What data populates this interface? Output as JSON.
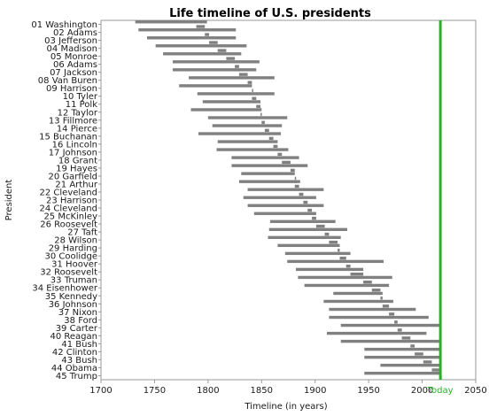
{
  "chart_data": {
    "type": "timeline-range",
    "title": "Life timeline of U.S. presidents",
    "xlabel": "Timeline (in years)",
    "ylabel": "President",
    "xlim": [
      1700,
      2050
    ],
    "xticks": [
      1700,
      1750,
      1800,
      1850,
      1900,
      1950,
      2000,
      2050
    ],
    "grid": false,
    "bar_color": "#808080",
    "reference_line": {
      "value": 2017,
      "label": "Today",
      "color": "#2ab02a"
    },
    "presidents": [
      {
        "name": "01 Washington",
        "born": 1732,
        "died": 1799,
        "term_start": 1789,
        "term_end": 1797
      },
      {
        "name": "02 Adams",
        "born": 1735,
        "died": 1826,
        "term_start": 1797,
        "term_end": 1801
      },
      {
        "name": "03 Jefferson",
        "born": 1743,
        "died": 1826,
        "term_start": 1801,
        "term_end": 1809
      },
      {
        "name": "04 Madison",
        "born": 1751,
        "died": 1836,
        "term_start": 1809,
        "term_end": 1817
      },
      {
        "name": "05 Monroe",
        "born": 1758,
        "died": 1831,
        "term_start": 1817,
        "term_end": 1825
      },
      {
        "name": "06 Adams",
        "born": 1767,
        "died": 1848,
        "term_start": 1825,
        "term_end": 1829
      },
      {
        "name": "07 Jackson",
        "born": 1767,
        "died": 1845,
        "term_start": 1829,
        "term_end": 1837
      },
      {
        "name": "08 Van Buren",
        "born": 1782,
        "died": 1862,
        "term_start": 1837,
        "term_end": 1841
      },
      {
        "name": "09 Harrison",
        "born": 1773,
        "died": 1841,
        "term_start": 1841,
        "term_end": 1841
      },
      {
        "name": "10 Tyler",
        "born": 1790,
        "died": 1862,
        "term_start": 1841,
        "term_end": 1845
      },
      {
        "name": "11 Polk",
        "born": 1795,
        "died": 1849,
        "term_start": 1845,
        "term_end": 1849
      },
      {
        "name": "12 Taylor",
        "born": 1784,
        "died": 1850,
        "term_start": 1849,
        "term_end": 1850
      },
      {
        "name": "13 Fillmore",
        "born": 1800,
        "died": 1874,
        "term_start": 1850,
        "term_end": 1853
      },
      {
        "name": "14 Pierce",
        "born": 1804,
        "died": 1869,
        "term_start": 1853,
        "term_end": 1857
      },
      {
        "name": "15 Buchanan",
        "born": 1791,
        "died": 1868,
        "term_start": 1857,
        "term_end": 1861
      },
      {
        "name": "16 Lincoln",
        "born": 1809,
        "died": 1865,
        "term_start": 1861,
        "term_end": 1865
      },
      {
        "name": "17 Johnson",
        "born": 1808,
        "died": 1875,
        "term_start": 1865,
        "term_end": 1869
      },
      {
        "name": "18 Grant",
        "born": 1822,
        "died": 1885,
        "term_start": 1869,
        "term_end": 1877
      },
      {
        "name": "19 Hayes",
        "born": 1822,
        "died": 1893,
        "term_start": 1877,
        "term_end": 1881
      },
      {
        "name": "20 Garfield",
        "born": 1831,
        "died": 1881,
        "term_start": 1881,
        "term_end": 1881
      },
      {
        "name": "21 Arthur",
        "born": 1829,
        "died": 1886,
        "term_start": 1881,
        "term_end": 1885
      },
      {
        "name": "22 Cleveland",
        "born": 1837,
        "died": 1908,
        "term_start": 1885,
        "term_end": 1889
      },
      {
        "name": "23 Harrison",
        "born": 1833,
        "died": 1901,
        "term_start": 1889,
        "term_end": 1893
      },
      {
        "name": "24 Cleveland",
        "born": 1837,
        "died": 1908,
        "term_start": 1893,
        "term_end": 1897
      },
      {
        "name": "25 McKinley",
        "born": 1843,
        "died": 1901,
        "term_start": 1897,
        "term_end": 1901
      },
      {
        "name": "26 Roosevelt",
        "born": 1858,
        "died": 1919,
        "term_start": 1901,
        "term_end": 1909
      },
      {
        "name": "27 Taft",
        "born": 1857,
        "died": 1930,
        "term_start": 1909,
        "term_end": 1913
      },
      {
        "name": "28 Wilson",
        "born": 1856,
        "died": 1924,
        "term_start": 1913,
        "term_end": 1921
      },
      {
        "name": "29 Harding",
        "born": 1865,
        "died": 1923,
        "term_start": 1921,
        "term_end": 1923
      },
      {
        "name": "30 Coolidge",
        "born": 1872,
        "died": 1933,
        "term_start": 1923,
        "term_end": 1929
      },
      {
        "name": "31 Hoover",
        "born": 1874,
        "died": 1964,
        "term_start": 1929,
        "term_end": 1933
      },
      {
        "name": "32 Roosevelt",
        "born": 1882,
        "died": 1945,
        "term_start": 1933,
        "term_end": 1945
      },
      {
        "name": "33 Truman",
        "born": 1884,
        "died": 1972,
        "term_start": 1945,
        "term_end": 1953
      },
      {
        "name": "34 Eisenhower",
        "born": 1890,
        "died": 1969,
        "term_start": 1953,
        "term_end": 1961
      },
      {
        "name": "35 Kennedy",
        "born": 1917,
        "died": 1963,
        "term_start": 1961,
        "term_end": 1963
      },
      {
        "name": "36 Johnson",
        "born": 1908,
        "died": 1973,
        "term_start": 1963,
        "term_end": 1969
      },
      {
        "name": "37 Nixon",
        "born": 1913,
        "died": 1994,
        "term_start": 1969,
        "term_end": 1974
      },
      {
        "name": "38 Ford",
        "born": 1913,
        "died": 2006,
        "term_start": 1974,
        "term_end": 1977
      },
      {
        "name": "39 Carter",
        "born": 1924,
        "died": 2017,
        "term_start": 1977,
        "term_end": 1981
      },
      {
        "name": "40 Reagan",
        "born": 1911,
        "died": 2004,
        "term_start": 1981,
        "term_end": 1989
      },
      {
        "name": "41 Bush",
        "born": 1924,
        "died": 2017,
        "term_start": 1989,
        "term_end": 1993
      },
      {
        "name": "42 Clinton",
        "born": 1946,
        "died": 2017,
        "term_start": 1993,
        "term_end": 2001
      },
      {
        "name": "43 Bush",
        "born": 1946,
        "died": 2017,
        "term_start": 2001,
        "term_end": 2009
      },
      {
        "name": "44 Obama",
        "born": 1961,
        "died": 2017,
        "term_start": 2009,
        "term_end": 2017
      },
      {
        "name": "45 Trump",
        "born": 1946,
        "died": 2017,
        "term_start": 2017,
        "term_end": 2017
      }
    ]
  }
}
